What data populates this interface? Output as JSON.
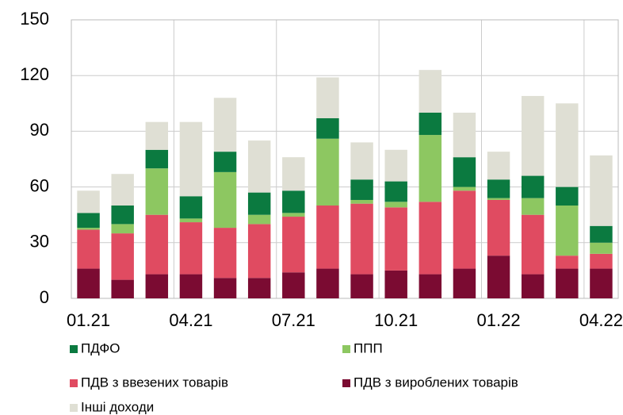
{
  "chart_data": {
    "type": "stacked_bar",
    "categories": [
      "01.21",
      null,
      null,
      "04.21",
      null,
      null,
      "07.21",
      null,
      null,
      "10.21",
      null,
      null,
      "01.22",
      null,
      null,
      "04.22"
    ],
    "series": [
      {
        "name": "ПДВ з вироблених товарів",
        "color": "#7b0b32",
        "values": [
          16,
          10,
          13,
          13,
          11,
          11,
          14,
          16,
          13,
          15,
          13,
          16,
          23,
          13,
          16,
          16
        ]
      },
      {
        "name": "ПДВ з ввезених товарів",
        "color": "#e04b61",
        "values": [
          21,
          25,
          32,
          28,
          27,
          29,
          30,
          34,
          38,
          34,
          39,
          42,
          30,
          32,
          7,
          8
        ]
      },
      {
        "name": "ППП",
        "color": "#8dc761",
        "values": [
          1,
          5,
          25,
          2,
          30,
          5,
          2,
          36,
          2,
          3,
          36,
          2,
          1,
          9,
          27,
          6
        ]
      },
      {
        "name": "ПДФО",
        "color": "#0b7a40",
        "values": [
          8,
          10,
          10,
          12,
          11,
          12,
          12,
          11,
          11,
          11,
          12,
          16,
          10,
          12,
          10,
          9
        ]
      },
      {
        "name": "Інші доходи",
        "color": "#dfdfd4",
        "values": [
          12,
          17,
          15,
          40,
          29,
          28,
          18,
          22,
          20,
          17,
          23,
          24,
          15,
          43,
          45,
          38
        ]
      }
    ],
    "ylim": [
      0,
      150
    ],
    "yticks": [
      0,
      30,
      60,
      90,
      120,
      150
    ],
    "grid": true
  }
}
